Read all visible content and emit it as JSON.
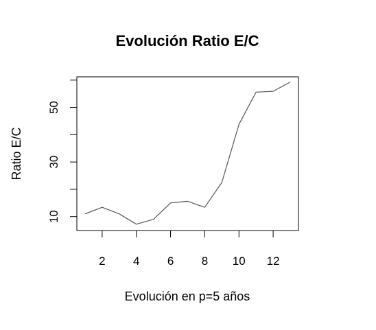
{
  "chart_data": {
    "type": "line",
    "title": "Evolución Ratio E/C",
    "xlabel": "Evolución en p=5 años",
    "ylabel": "Ratio E/C",
    "x": [
      1,
      2,
      3,
      4,
      5,
      6,
      7,
      8,
      9,
      10,
      11,
      12,
      13
    ],
    "series": [
      {
        "values": [
          11.0,
          13.4,
          11.0,
          7.2,
          9.0,
          15.0,
          15.6,
          13.4,
          22.5,
          43.8,
          55.6,
          55.9,
          59.3
        ]
      }
    ],
    "xlim": [
      0.52,
      13.48
    ],
    "ylim": [
      4.9,
      61.2
    ],
    "x_ticks": [
      2,
      4,
      6,
      8,
      10,
      12
    ],
    "y_ticks": [
      10,
      20,
      30,
      40,
      50,
      60
    ],
    "y_tick_labels": [
      {
        "value": 10,
        "label": "10"
      },
      {
        "value": 30,
        "label": "30"
      },
      {
        "value": 50,
        "label": "50"
      }
    ],
    "grid": false,
    "line_color": "#555555",
    "axis_color": "#000000"
  }
}
